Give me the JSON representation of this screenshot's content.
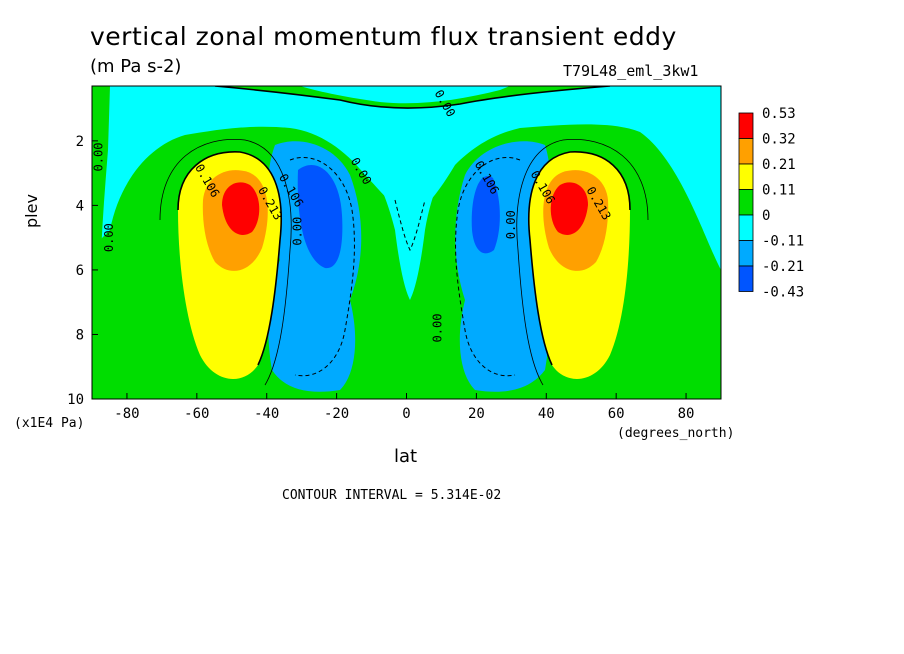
{
  "chart_data": {
    "type": "heatmap",
    "title": "vertical zonal momentum flux transient eddy",
    "units": "(m Pa s-2)",
    "run_label": "T79L48_eml_3kw1",
    "xlabel": "lat",
    "xunit": "(degrees_north)",
    "ylabel": "plev",
    "yunit": "(x1E4 Pa)",
    "xlim": [
      -90,
      90
    ],
    "ylim": [
      10,
      0.3
    ],
    "x_ticks": [
      -80,
      -60,
      -40,
      -20,
      0,
      20,
      40,
      60,
      80
    ],
    "y_ticks": [
      2,
      4,
      6,
      8,
      10
    ],
    "contour_interval": "CONTOUR INTERVAL = 5.314E-02",
    "colorbar": {
      "labels": [
        "0.53",
        "0.32",
        "0.21",
        "0.11",
        "0",
        "-0.11",
        "-0.21",
        "-0.43"
      ],
      "colors": [
        "#ff0000",
        "#ffa000",
        "#ffff00",
        "#00dd00",
        "#00ffff",
        "#00aaff",
        "#0055ff"
      ]
    },
    "contour_labels": [
      {
        "text": "0.00",
        "lat": 10,
        "plev": 0.9
      },
      {
        "text": "0.00",
        "lat": -87,
        "plev": 2.5
      },
      {
        "text": "0.00",
        "lat": -84,
        "plev": 5.0
      },
      {
        "text": "0.106",
        "lat": -58,
        "plev": 3.3
      },
      {
        "text": "0.213",
        "lat": -40,
        "plev": 4.0
      },
      {
        "text": "0.106",
        "lat": -34,
        "plev": 3.6
      },
      {
        "text": "0.00",
        "lat": -30,
        "plev": 4.8
      },
      {
        "text": "0.00",
        "lat": -14,
        "plev": 3.0
      },
      {
        "text": "0.106",
        "lat": 22,
        "plev": 3.2
      },
      {
        "text": "0.00",
        "lat": 31,
        "plev": 4.6
      },
      {
        "text": "0.106",
        "lat": 38,
        "plev": 3.5
      },
      {
        "text": "0.213",
        "lat": 54,
        "plev": 4.0
      },
      {
        "text": "0.00",
        "lat": 10,
        "plev": 7.8
      }
    ]
  }
}
